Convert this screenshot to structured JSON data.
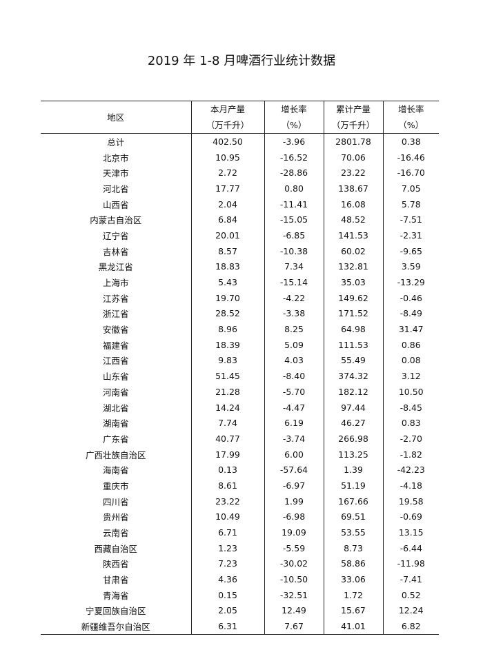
{
  "title": "2019 年 1-8 月啤酒行业统计数据",
  "headers": [
    {
      "line1": "地区",
      "line2": ""
    },
    {
      "line1": "本月产量",
      "line2": "（万千升）"
    },
    {
      "line1": "增长率",
      "line2": "（%）"
    },
    {
      "line1": "累计产量",
      "line2": "（万千升）"
    },
    {
      "line1": "增长率",
      "line2": "（%）"
    }
  ],
  "rows": [
    [
      "总计",
      "402.50",
      "-3.96",
      "2801.78",
      "0.38"
    ],
    [
      "北京市",
      "10.95",
      "-16.52",
      "70.06",
      "-16.46"
    ],
    [
      "天津市",
      "2.72",
      "-28.86",
      "23.22",
      "-16.70"
    ],
    [
      "河北省",
      "17.77",
      "0.80",
      "138.67",
      "7.05"
    ],
    [
      "山西省",
      "2.04",
      "-11.41",
      "16.08",
      "5.78"
    ],
    [
      "内蒙古自治区",
      "6.84",
      "-15.05",
      "48.52",
      "-7.51"
    ],
    [
      "辽宁省",
      "20.01",
      "-6.85",
      "141.53",
      "-2.31"
    ],
    [
      "吉林省",
      "8.57",
      "-10.38",
      "60.02",
      "-9.65"
    ],
    [
      "黑龙江省",
      "18.83",
      "7.34",
      "132.81",
      "3.59"
    ],
    [
      "上海市",
      "5.43",
      "-15.14",
      "35.03",
      "-13.29"
    ],
    [
      "江苏省",
      "19.70",
      "-4.22",
      "149.62",
      "-0.46"
    ],
    [
      "浙江省",
      "28.52",
      "-3.38",
      "171.52",
      "-8.49"
    ],
    [
      "安徽省",
      "8.96",
      "8.25",
      "64.98",
      "31.47"
    ],
    [
      "福建省",
      "18.39",
      "5.09",
      "111.53",
      "0.86"
    ],
    [
      "江西省",
      "9.83",
      "4.03",
      "55.49",
      "0.08"
    ],
    [
      "山东省",
      "51.45",
      "-8.40",
      "374.32",
      "3.12"
    ],
    [
      "河南省",
      "21.28",
      "-5.70",
      "182.12",
      "10.50"
    ],
    [
      "湖北省",
      "14.24",
      "-4.47",
      "97.44",
      "-8.45"
    ],
    [
      "湖南省",
      "7.74",
      "6.19",
      "46.27",
      "0.83"
    ],
    [
      "广东省",
      "40.77",
      "-3.74",
      "266.98",
      "-2.70"
    ],
    [
      "广西壮族自治区",
      "17.99",
      "6.00",
      "113.25",
      "-1.82"
    ],
    [
      "海南省",
      "0.13",
      "-57.64",
      "1.39",
      "-42.23"
    ],
    [
      "重庆市",
      "8.61",
      "-6.97",
      "51.19",
      "-4.18"
    ],
    [
      "四川省",
      "23.22",
      "1.99",
      "167.66",
      "19.58"
    ],
    [
      "贵州省",
      "10.49",
      "-6.98",
      "69.51",
      "-0.69"
    ],
    [
      "云南省",
      "6.71",
      "19.09",
      "53.55",
      "13.15"
    ],
    [
      "西藏自治区",
      "1.23",
      "-5.59",
      "8.73",
      "-6.44"
    ],
    [
      "陕西省",
      "7.23",
      "-30.02",
      "58.86",
      "-11.98"
    ],
    [
      "甘肃省",
      "4.36",
      "-10.50",
      "33.06",
      "-7.41"
    ],
    [
      "青海省",
      "0.15",
      "-32.51",
      "1.72",
      "0.52"
    ],
    [
      "宁夏回族自治区",
      "2.05",
      "12.49",
      "15.67",
      "12.24"
    ],
    [
      "新疆维吾尔自治区",
      "6.31",
      "7.67",
      "41.01",
      "6.82"
    ]
  ]
}
